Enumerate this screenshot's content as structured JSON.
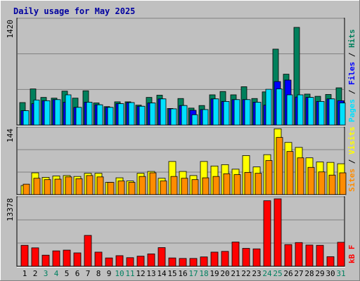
{
  "chart_data": [
    {
      "type": "bar",
      "title": "Daily usage for May 2025",
      "categories": [
        "1",
        "2",
        "3",
        "4",
        "5",
        "6",
        "7",
        "8",
        "9",
        "10",
        "11",
        "12",
        "13",
        "14",
        "15",
        "16",
        "17",
        "18",
        "19",
        "20",
        "21",
        "22",
        "23",
        "24",
        "25",
        "26",
        "27",
        "28",
        "29",
        "30",
        "31"
      ],
      "weekend_days": [
        "3",
        "4",
        "10",
        "11",
        "17",
        "18",
        "24",
        "25",
        "31"
      ],
      "ymax_label": "1420",
      "ylim": [
        0,
        1420
      ],
      "right_labels": [
        "Pages",
        "Files",
        "Hits"
      ],
      "grid": true,
      "series": [
        {
          "name": "Hits",
          "color": "#00805c",
          "values": [
            305,
            490,
            375,
            365,
            460,
            365,
            465,
            300,
            250,
            315,
            315,
            270,
            375,
            405,
            225,
            360,
            230,
            265,
            410,
            455,
            410,
            520,
            360,
            450,
            1030,
            690,
            1325,
            420,
            390,
            415,
            505
          ]
        },
        {
          "name": "Files",
          "color": "#0000ff",
          "values": [
            195,
            290,
            330,
            345,
            310,
            240,
            310,
            275,
            240,
            290,
            305,
            255,
            300,
            355,
            220,
            265,
            200,
            210,
            355,
            320,
            345,
            345,
            310,
            270,
            590,
            610,
            380,
            375,
            320,
            355,
            330
          ]
        },
        {
          "name": "Pages",
          "color": "#00e0ff",
          "values": [
            195,
            340,
            330,
            345,
            410,
            240,
            310,
            275,
            240,
            290,
            305,
            255,
            300,
            355,
            220,
            265,
            140,
            210,
            355,
            320,
            345,
            345,
            310,
            485,
            490,
            410,
            410,
            375,
            320,
            355,
            300
          ]
        }
      ]
    },
    {
      "type": "bar",
      "categories": [
        "1",
        "2",
        "3",
        "4",
        "5",
        "6",
        "7",
        "8",
        "9",
        "10",
        "11",
        "12",
        "13",
        "14",
        "15",
        "16",
        "17",
        "18",
        "19",
        "20",
        "21",
        "22",
        "23",
        "24",
        "25",
        "26",
        "27",
        "28",
        "29",
        "30",
        "31"
      ],
      "ymax_label": "144",
      "ylim": [
        0,
        144
      ],
      "right_labels": [
        "Sites",
        "Visits"
      ],
      "grid": true,
      "series": [
        {
          "name": "Visits",
          "color": "#ffff00",
          "values": [
            20,
            48,
            38,
            41,
            42,
            40,
            47,
            47,
            27,
            37,
            30,
            47,
            51,
            36,
            73,
            51,
            42,
            73,
            63,
            66,
            56,
            86,
            61,
            88,
            145,
            115,
            104,
            81,
            72,
            71,
            68
          ]
        },
        {
          "name": "Sites",
          "color": "#ff8c00",
          "values": [
            23,
            36,
            33,
            34,
            39,
            35,
            42,
            39,
            27,
            30,
            27,
            40,
            48,
            30,
            40,
            36,
            33,
            37,
            40,
            46,
            44,
            49,
            47,
            75,
            126,
            95,
            81,
            60,
            50,
            43,
            48
          ]
        }
      ]
    },
    {
      "type": "bar",
      "categories": [
        "1",
        "2",
        "3",
        "4",
        "5",
        "6",
        "7",
        "8",
        "9",
        "10",
        "11",
        "12",
        "13",
        "14",
        "15",
        "16",
        "17",
        "18",
        "19",
        "20",
        "21",
        "22",
        "23",
        "24",
        "25",
        "26",
        "27",
        "28",
        "29",
        "30",
        "31"
      ],
      "ymax_label": "13378",
      "ylim": [
        0,
        13378
      ],
      "right_labels": [
        "kB F"
      ],
      "grid": true,
      "series": [
        {
          "name": "kB F",
          "color": "#ff0000",
          "values": [
            4150,
            3650,
            2200,
            3050,
            3200,
            2650,
            6120,
            2800,
            1650,
            2100,
            1700,
            2000,
            2450,
            3700,
            1650,
            1550,
            1550,
            1850,
            2800,
            2950,
            4800,
            3550,
            3450,
            13000,
            13378,
            4300,
            4700,
            4200,
            4150,
            1900,
            4750
          ]
        }
      ]
    }
  ]
}
